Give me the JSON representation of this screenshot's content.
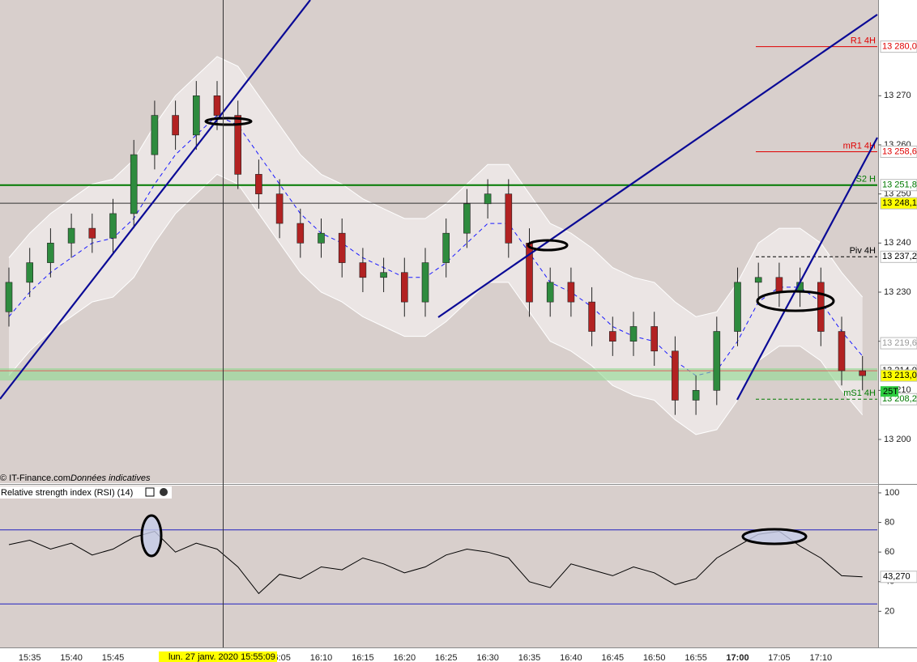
{
  "chart_data": [
    {
      "type": "candlestick",
      "source": "© IT-Finance.com",
      "source_note": "Données indicatives",
      "cursor_label": "lun. 27 janv. 2020 15:55:09",
      "counter": "25T",
      "categories": [
        null,
        "15:35",
        null,
        "15:40",
        null,
        "15:45",
        null,
        null,
        null,
        null,
        null,
        null,
        null,
        "16:05",
        null,
        "16:10",
        null,
        "16:15",
        null,
        "16:20",
        null,
        "16:25",
        null,
        "16:30",
        null,
        "16:35",
        null,
        "16:40",
        null,
        "16:45",
        null,
        "16:50",
        null,
        "16:55",
        null,
        "17:00",
        null,
        "17:05",
        null,
        "17:10",
        null,
        null
      ],
      "bold_category": "17:00",
      "open": [
        13226,
        13232,
        13236,
        13240,
        13243,
        13241,
        13246,
        13258,
        13266,
        13262,
        13270,
        13266,
        13254,
        13250,
        13244,
        13240,
        13242,
        13236,
        13233,
        13234,
        13228,
        13236,
        13242,
        13248,
        13250,
        13240,
        13228,
        13232,
        13228,
        13222,
        13220,
        13223,
        13218,
        13208,
        13210,
        13222,
        13232,
        13233,
        13230,
        13232,
        13222,
        13214
      ],
      "high": [
        13235,
        13239,
        13243,
        13246,
        13246,
        13249,
        13261,
        13269,
        13269,
        13273,
        13273,
        13269,
        13257,
        13253,
        13247,
        13245,
        13245,
        13239,
        13237,
        13237,
        13239,
        13245,
        13251,
        13253,
        13253,
        13243,
        13235,
        13235,
        13231,
        13225,
        13226,
        13226,
        13221,
        13213,
        13225,
        13235,
        13236,
        13236,
        13235,
        13235,
        13225,
        13217
      ],
      "low": [
        13223,
        13229,
        13233,
        13237,
        13238,
        13238,
        13243,
        13255,
        13259,
        13259,
        13263,
        13251,
        13247,
        13241,
        13237,
        13237,
        13233,
        13230,
        13230,
        13225,
        13225,
        13233,
        13239,
        13245,
        13237,
        13225,
        13225,
        13225,
        13219,
        13217,
        13217,
        13215,
        13205,
        13205,
        13207,
        13219,
        13229,
        13227,
        13227,
        13219,
        13211,
        13210
      ],
      "close": [
        13232,
        13236,
        13240,
        13243,
        13241,
        13246,
        13258,
        13266,
        13262,
        13270,
        13266,
        13254,
        13250,
        13244,
        13240,
        13242,
        13236,
        13233,
        13234,
        13228,
        13236,
        13242,
        13248,
        13250,
        13240,
        13228,
        13232,
        13228,
        13222,
        13220,
        13223,
        13218,
        13208,
        13210,
        13222,
        13232,
        13233,
        13230,
        13232,
        13222,
        13214,
        13213
      ],
      "up_color": "#2e8b3e",
      "down_color": "#b22222",
      "bollinger": {
        "upper": [
          13237,
          13242,
          13246,
          13249,
          13252,
          13253,
          13257,
          13264,
          13270,
          13274,
          13278,
          13276,
          13270,
          13264,
          13258,
          13254,
          13252,
          13249,
          13247,
          13245,
          13245,
          13248,
          13252,
          13256,
          13256,
          13250,
          13244,
          13242,
          13239,
          13235,
          13233,
          13232,
          13228,
          13225,
          13226,
          13232,
          13240,
          13243,
          13243,
          13240,
          13234,
          13229
        ],
        "middle": [
          13225,
          13230,
          13234,
          13237,
          13240,
          13241,
          13245,
          13252,
          13258,
          13262,
          13266,
          13264,
          13258,
          13252,
          13246,
          13242,
          13240,
          13237,
          13235,
          13233,
          13233,
          13236,
          13240,
          13244,
          13244,
          13238,
          13232,
          13230,
          13227,
          13223,
          13221,
          13220,
          13216,
          13213,
          13214,
          13220,
          13228,
          13231,
          13231,
          13228,
          13222,
          13217
        ],
        "lower": [
          13213,
          13218,
          13222,
          13225,
          13228,
          13229,
          13233,
          13240,
          13246,
          13250,
          13254,
          13252,
          13246,
          13240,
          13234,
          13230,
          13228,
          13225,
          13223,
          13221,
          13221,
          13224,
          13228,
          13232,
          13232,
          13226,
          13220,
          13218,
          13215,
          13211,
          13209,
          13208,
          13204,
          13201,
          13202,
          13208,
          13216,
          13219,
          13219,
          13216,
          13210,
          13205
        ],
        "middle_color": "#1a1aff"
      },
      "ylim": [
        13191.1,
        13289.5
      ],
      "yticks": [
        {
          "value": 13200,
          "label": "13 200"
        },
        {
          "value": 13210,
          "label": "13 210"
        },
        {
          "value": 13220,
          "label": "13 220"
        },
        {
          "value": 13230,
          "label": "13 230"
        },
        {
          "value": 13240,
          "label": "13 240"
        },
        {
          "value": 13250,
          "label": "13 250"
        },
        {
          "value": 13260,
          "label": "13 260"
        },
        {
          "value": 13270,
          "label": "13 270"
        }
      ],
      "zone": [
        13212,
        13214.5
      ],
      "levels": [
        {
          "value": 13280.0,
          "label": "13 280,0",
          "name": "R1 4H",
          "color": "#e00000",
          "extent": "short",
          "style": "solid",
          "box": "#ffffff"
        },
        {
          "value": 13258.6,
          "label": "13 258,6",
          "name": "mR1 4H",
          "color": "#e00000",
          "extent": "short",
          "style": "solid",
          "box": "#ffffff"
        },
        {
          "value": 13251.8,
          "label": "13 251,8",
          "name": "S2 H",
          "color": "#007a00",
          "extent": "full",
          "style": "thick",
          "box": "#ffffff"
        },
        {
          "value": 13248.1,
          "label": "13 248,1",
          "color": "#333333",
          "extent": "full",
          "style": "solid",
          "box": "#ffff00"
        },
        {
          "value": 13237.2,
          "label": "13 237,2",
          "name": "Piv 4H",
          "color": "#000000",
          "extent": "short",
          "style": "dashed",
          "box": "#ffffff"
        },
        {
          "value": 13219.6,
          "label": "13 219,6",
          "color": "#aaaaaa",
          "extent": "none",
          "style": "solid",
          "box": "#ffffff"
        },
        {
          "value": 13214.0,
          "label": "13 214,0",
          "color": "#e06060",
          "extent": "full",
          "style": "solid",
          "box": "#ffffff"
        },
        {
          "value": 13213.0,
          "label": "13 213,0",
          "color": "#000000",
          "extent": "none",
          "style": "solid",
          "box": "#ffff00"
        },
        {
          "value": 13208.2,
          "label": "13 208,2",
          "name": "mS1 4H",
          "color": "#007a00",
          "extent": "short",
          "style": "dashed",
          "box": "#ffffff"
        }
      ]
    },
    {
      "type": "line",
      "title": "Relative strength index (RSI) (14)",
      "values": [
        65,
        68,
        62,
        66,
        58,
        62,
        70,
        74,
        60,
        66,
        62,
        50,
        32,
        45,
        42,
        50,
        48,
        56,
        52,
        46,
        50,
        58,
        62,
        60,
        56,
        40,
        36,
        52,
        48,
        44,
        50,
        46,
        38,
        42,
        56,
        64,
        72,
        74,
        64,
        56,
        44,
        43.27
      ],
      "color": "#000000",
      "ylim": [
        -4.4,
        104.9
      ],
      "yticks": [
        20,
        40,
        60,
        80,
        100
      ],
      "levels": [
        75,
        25
      ],
      "level_color": "#2020c0",
      "current": {
        "value": 43.27,
        "label": "43,270"
      }
    }
  ]
}
